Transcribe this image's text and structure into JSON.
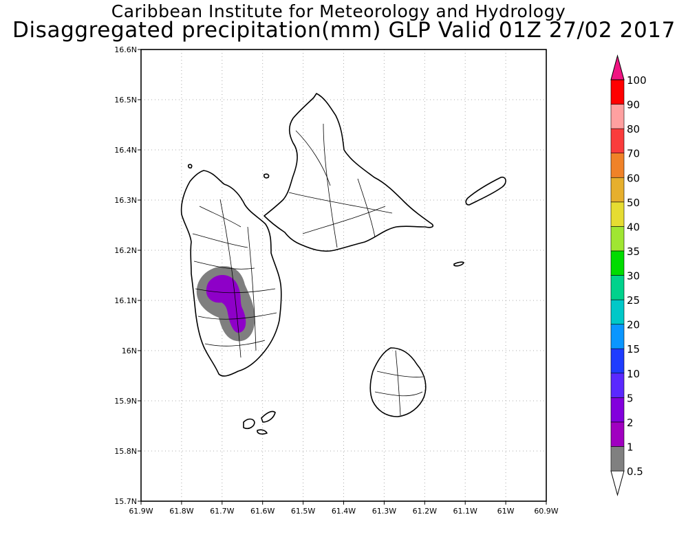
{
  "title": "Caribbean Institute for Meteorology and Hydrology",
  "subtitle": "Disaggregated precipitation(mm) GLP Valid 01Z 27/02 2017",
  "map": {
    "lon_range": [
      -61.9,
      -60.9
    ],
    "lat_range": [
      15.7,
      16.6
    ],
    "x_ticks": [
      "61.9W",
      "61.8W",
      "61.7W",
      "61.6W",
      "61.5W",
      "61.4W",
      "61.3W",
      "61.2W",
      "61.1W",
      "61W",
      "60.9W"
    ],
    "y_ticks": [
      "16.6N",
      "16.5N",
      "16.4N",
      "16.3N",
      "16.2N",
      "16.1N",
      "16N",
      "15.9N",
      "15.8N",
      "15.7N"
    ],
    "grid": true,
    "grid_style": "dotted",
    "precip_area": "southwest Basse-Terre, around 61.70W 16.08N",
    "precip_levels_shown": [
      "0.5-1",
      "2-5"
    ]
  },
  "legend": {
    "labels": [
      "0.5",
      "1",
      "2",
      "5",
      "10",
      "15",
      "20",
      "25",
      "30",
      "35",
      "40",
      "50",
      "60",
      "70",
      "80",
      "90",
      "100"
    ],
    "colors": [
      "#808080",
      "#a000c0",
      "#8200dc",
      "#5a28ff",
      "#1e3cff",
      "#0a96ff",
      "#00c8c8",
      "#00d28c",
      "#00dc00",
      "#a0e632",
      "#e6dc32",
      "#e6af2d",
      "#f08228",
      "#fa3c3c",
      "#ffa0a0",
      "#ff0000",
      "#ff4040"
    ],
    "top_arrow_color": "#f01482"
  }
}
